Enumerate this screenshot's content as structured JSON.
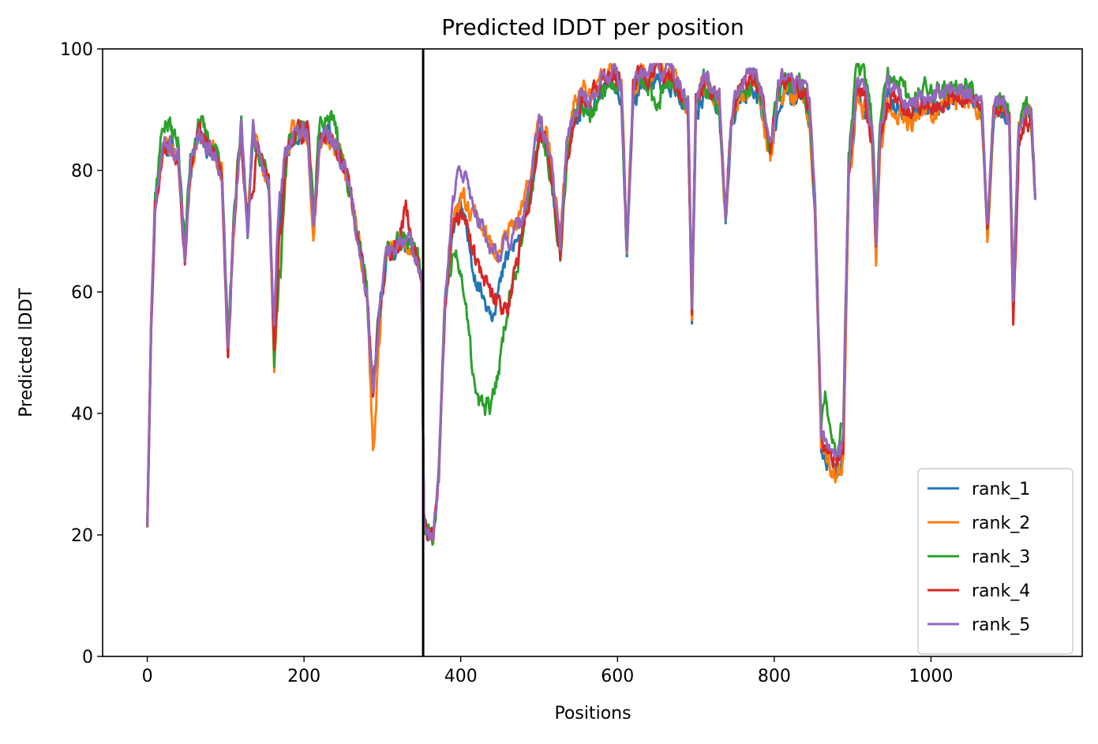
{
  "chart_data": {
    "type": "line",
    "title": "Predicted lDDT per position",
    "xlabel": "Positions",
    "ylabel": "Predicted lDDT",
    "xlim": [
      -57,
      1193
    ],
    "ylim": [
      0,
      100
    ],
    "x_ticks": [
      0,
      200,
      400,
      600,
      800,
      1000
    ],
    "y_ticks": [
      0,
      20,
      40,
      60,
      80,
      100
    ],
    "x_tick_labels": [
      "0",
      "200",
      "400",
      "600",
      "800",
      "1000"
    ],
    "y_tick_labels": [
      "0",
      "20",
      "40",
      "60",
      "80",
      "100"
    ],
    "vline_x": 352,
    "vline_color": "#000000",
    "grid": false,
    "legend_position": "lower-right",
    "base_profile": {
      "x": [
        0,
        5,
        10,
        20,
        30,
        40,
        48,
        55,
        65,
        75,
        85,
        95,
        103,
        110,
        120,
        128,
        135,
        145,
        155,
        162,
        168,
        175,
        185,
        195,
        205,
        212,
        220,
        230,
        240,
        250,
        260,
        270,
        280,
        288,
        295,
        305,
        315,
        325,
        335,
        345,
        350,
        353,
        358,
        365,
        372,
        380,
        390,
        400,
        410,
        420,
        430,
        440,
        450,
        460,
        470,
        480,
        490,
        500,
        510,
        520,
        527,
        535,
        545,
        555,
        565,
        575,
        585,
        595,
        605,
        612,
        620,
        630,
        640,
        650,
        660,
        670,
        680,
        690,
        695,
        700,
        710,
        720,
        730,
        738,
        745,
        755,
        765,
        775,
        785,
        795,
        805,
        815,
        825,
        835,
        845,
        852,
        860,
        870,
        880,
        888,
        895,
        905,
        915,
        925,
        930,
        935,
        945,
        955,
        965,
        975,
        985,
        995,
        1005,
        1015,
        1025,
        1035,
        1045,
        1055,
        1065,
        1072,
        1080,
        1090,
        1100,
        1105,
        1112,
        1120,
        1128,
        1133
      ],
      "y": [
        22,
        55,
        74,
        84,
        84,
        82,
        66,
        80,
        87,
        84,
        83,
        80,
        50,
        70,
        87,
        70,
        86,
        82,
        78,
        50,
        70,
        82,
        86,
        86,
        86,
        70,
        85,
        86,
        84,
        81,
        76,
        68,
        60,
        43,
        55,
        66,
        67,
        69,
        68,
        66,
        62,
        22,
        20,
        19,
        30,
        58,
        72,
        76,
        73,
        70,
        66,
        63,
        64,
        66,
        68,
        70,
        77,
        86,
        84,
        74,
        66,
        82,
        88,
        91,
        90,
        92,
        94,
        95,
        92,
        66,
        92,
        95,
        94,
        96,
        95,
        95,
        92,
        90,
        56,
        90,
        94,
        93,
        91,
        72,
        88,
        93,
        94,
        95,
        91,
        83,
        93,
        95,
        93,
        94,
        90,
        75,
        36,
        34,
        32,
        35,
        80,
        94,
        93,
        86,
        68,
        85,
        93,
        92,
        91,
        90,
        91,
        92,
        91,
        92,
        93,
        92,
        93,
        92,
        90,
        70,
        90,
        91,
        88,
        58,
        88,
        90,
        89,
        76
      ]
    },
    "series": [
      {
        "name": "rank_1",
        "color": "#1f77b4",
        "offsets": {
          "x": [
            0,
            380,
            400,
            420,
            440,
            460,
            880,
            1133
          ],
          "y": [
            0,
            0,
            -2,
            -8,
            -6,
            0,
            -2,
            0
          ]
        },
        "noise_amp": 3.0,
        "seed": 11
      },
      {
        "name": "rank_2",
        "color": "#ff7f0e",
        "offsets": {
          "x": [
            0,
            160,
            170,
            180,
            280,
            290,
            300,
            400,
            430,
            860,
            880,
            1133
          ],
          "y": [
            0,
            0,
            -10,
            0,
            0,
            -10,
            0,
            0,
            4,
            -2,
            -3,
            0
          ]
        },
        "noise_amp": 3.2,
        "seed": 23
      },
      {
        "name": "rank_3",
        "color": "#2ca02c",
        "offsets": {
          "x": [
            0,
            20,
            40,
            160,
            170,
            180,
            230,
            240,
            250,
            380,
            400,
            420,
            440,
            460,
            480,
            640,
            650,
            660,
            860,
            865,
            875,
            1133
          ],
          "y": [
            0,
            4,
            2,
            0,
            -10,
            0,
            3,
            4,
            0,
            0,
            -12,
            -28,
            -22,
            -8,
            0,
            0,
            -8,
            0,
            0,
            8,
            3,
            0
          ]
        },
        "noise_amp": 3.4,
        "seed": 37
      },
      {
        "name": "rank_4",
        "color": "#d62728",
        "offsets": {
          "x": [
            0,
            130,
            135,
            140,
            160,
            170,
            180,
            320,
            330,
            340,
            380,
            400,
            420,
            440,
            460,
            480,
            620,
            640,
            860,
            880,
            1100,
            1110,
            1133
          ],
          "y": [
            0,
            0,
            -10,
            0,
            0,
            -4,
            0,
            0,
            5,
            0,
            0,
            -3,
            -5,
            -4,
            -8,
            0,
            2,
            1,
            0,
            -1,
            0,
            -4,
            0
          ]
        },
        "noise_amp": 3.2,
        "seed": 53
      },
      {
        "name": "rank_5",
        "color": "#9467bd",
        "offsets": {
          "x": [
            0,
            160,
            165,
            175,
            380,
            400,
            420,
            440,
            460,
            1133
          ],
          "y": [
            0,
            0,
            6,
            0,
            0,
            5,
            3,
            4,
            2,
            0
          ]
        },
        "noise_amp": 3.0,
        "seed": 71
      }
    ]
  }
}
